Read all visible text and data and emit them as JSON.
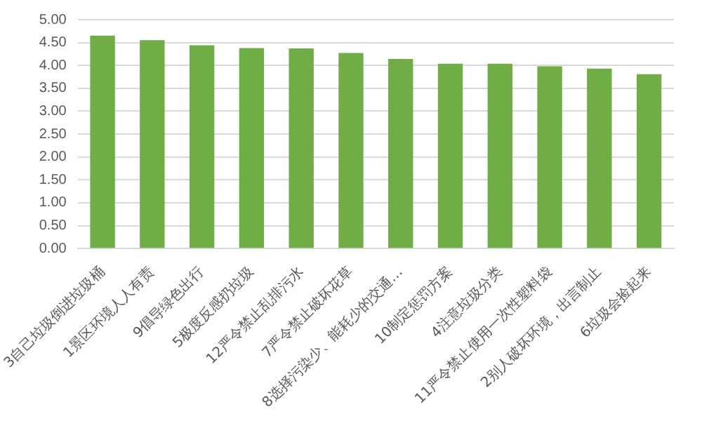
{
  "chart_data": {
    "type": "bar",
    "categories": [
      "3自己垃圾倒进垃圾桶",
      "1景区环境人人有责",
      "9倡导绿色出行",
      "5极度反感扔垃圾",
      "12严令禁止乱排污水",
      "7严令禁止破坏花草",
      "8选择污染少、能耗少的交通…",
      "10制定惩罚方案",
      "4注意垃圾分类",
      "11严令禁止使用一次性塑料袋",
      "2别人破坏环境，出言制止",
      "6垃圾会捡起来"
    ],
    "values": [
      4.65,
      4.55,
      4.44,
      4.38,
      4.37,
      4.27,
      4.14,
      4.04,
      4.04,
      3.98,
      3.93,
      3.81
    ],
    "color": "#70ad47",
    "ylim": [
      0,
      5
    ],
    "yticks": [
      {
        "value": 0,
        "label": "0.00"
      },
      {
        "value": 0.5,
        "label": "0.50"
      },
      {
        "value": 1,
        "label": "1.00"
      },
      {
        "value": 1.5,
        "label": "1.50"
      },
      {
        "value": 2,
        "label": "2.00"
      },
      {
        "value": 2.5,
        "label": "2.50"
      },
      {
        "value": 3,
        "label": "3.00"
      },
      {
        "value": 3.5,
        "label": "3.50"
      },
      {
        "value": 4,
        "label": "4.00"
      },
      {
        "value": 4.5,
        "label": "4.50"
      },
      {
        "value": 5,
        "label": "5.00"
      }
    ],
    "grid": "y"
  }
}
